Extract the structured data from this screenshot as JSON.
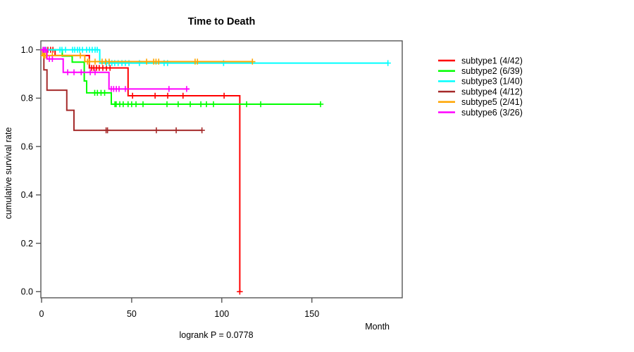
{
  "chart_data": {
    "type": "line",
    "variant": "kaplan-meier-step",
    "title": "Time to Death",
    "xlabel": "Month",
    "ylabel": "cumulative survival rate",
    "footnote": "logrank P = 0.0778",
    "xlim": [
      0,
      200
    ],
    "ylim": [
      0.0,
      1.0
    ],
    "x_ticks": [
      0,
      50,
      100,
      150
    ],
    "y_ticks": [
      0.0,
      0.2,
      0.4,
      0.6,
      0.8,
      1.0
    ],
    "grid": false,
    "legend_position": "right",
    "series": [
      {
        "name": "subtype1",
        "label": "subtype1 (4/42)",
        "color": "#FF0000",
        "steps": [
          [
            0,
            1.0
          ],
          [
            7.5,
            0.976
          ],
          [
            26.5,
            0.925
          ],
          [
            48,
            0.81
          ],
          [
            110,
            0.0
          ]
        ],
        "end": 110,
        "censors": [
          3.5,
          5,
          6.3,
          27.8,
          29,
          30.5,
          32,
          34,
          36,
          38,
          50.5,
          63,
          70,
          78.5,
          101.3,
          110
        ]
      },
      {
        "name": "subtype2",
        "label": "subtype2 (6/39)",
        "color": "#00FF00",
        "steps": [
          [
            0,
            1.0
          ],
          [
            11.5,
            0.974
          ],
          [
            17,
            0.949
          ],
          [
            23.7,
            0.871
          ],
          [
            25,
            0.822
          ],
          [
            38.7,
            0.775
          ]
        ],
        "end": 154.8,
        "censors": [
          2.5,
          29.5,
          31,
          33,
          35,
          40.7,
          41.4,
          43.4,
          45.3,
          48,
          50,
          52.4,
          56.3,
          69.6,
          75.8,
          82.5,
          88.4,
          91.5,
          95.4,
          113.8,
          121.6,
          154.8
        ]
      },
      {
        "name": "subtype3",
        "label": "subtype3 (1/40)",
        "color": "#00FFFF",
        "steps": [
          [
            0,
            1.0
          ],
          [
            32.3,
            0.945
          ]
        ],
        "end": 192.2,
        "censors": [
          1.5,
          2.5,
          10.2,
          11.3,
          13.3,
          17.2,
          18.4,
          19.9,
          21.1,
          22.7,
          25,
          26.6,
          28.1,
          29.7,
          30.9,
          36,
          37.5,
          39,
          40.6,
          42.5,
          44.6,
          46.5,
          48.5,
          54.3,
          68,
          69.9,
          101,
          192.2
        ]
      },
      {
        "name": "subtype4",
        "label": "subtype4 (4/12)",
        "color": "#A52A2A",
        "steps": [
          [
            0,
            1.0
          ],
          [
            1.3,
            0.917
          ],
          [
            3,
            0.833
          ],
          [
            14,
            0.75
          ],
          [
            18,
            0.667
          ]
        ],
        "end": 89,
        "censors": [
          35.8,
          36.6,
          63.7,
          74.7,
          89
        ]
      },
      {
        "name": "subtype5",
        "label": "subtype5 (2/41)",
        "color": "#FFA500",
        "steps": [
          [
            0,
            1.0
          ],
          [
            0.5,
            0.976
          ],
          [
            24,
            0.951
          ]
        ],
        "end": 117,
        "censors": [
          1.2,
          1.8,
          2.6,
          6,
          21.5,
          25.5,
          26.5,
          29.7,
          33.6,
          35.5,
          37.5,
          58.3,
          62.2,
          63.5,
          65,
          85.2,
          86.5,
          117
        ]
      },
      {
        "name": "subtype6",
        "label": "subtype6 (3/26)",
        "color": "#FF00FF",
        "steps": [
          [
            0,
            1.0
          ],
          [
            3,
            0.962
          ],
          [
            12,
            0.907
          ],
          [
            37.4,
            0.838
          ]
        ],
        "end": 82,
        "censors": [
          0.8,
          1.5,
          2.2,
          4.3,
          6,
          14.5,
          18,
          22,
          27,
          29.7,
          38.7,
          40,
          41.5,
          43,
          46.5,
          70.7,
          80.5
        ]
      }
    ]
  }
}
